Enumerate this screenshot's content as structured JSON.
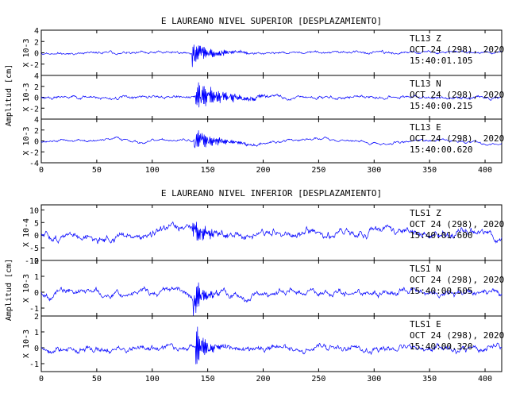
{
  "chart_data": [
    {
      "type": "line",
      "title": "E LAUREANO NIVEL SUPERIOR [DESPLAZAMIENTO]",
      "ylabel": "Amplitud [cm]",
      "xlim": [
        0,
        415
      ],
      "xticks": [
        0,
        50,
        100,
        150,
        200,
        250,
        300,
        350,
        400
      ],
      "line_color": "#0000ff",
      "panels": [
        {
          "scale_label": "X 10-3",
          "ylim": [
            -4,
            4
          ],
          "yticks": [
            -2,
            0,
            2,
            4
          ],
          "station": "TL13   Z",
          "date": "OCT 24 (298), 2020",
          "time": "15:40:01.105",
          "series": {
            "noise": 0.35,
            "trend": 0.05,
            "burst": 2.6,
            "burst_start": 137,
            "burst_len": 50,
            "seed": 11
          }
        },
        {
          "scale_label": "X 10-3",
          "ylim": [
            -4,
            4
          ],
          "yticks": [
            -2,
            0,
            2,
            4
          ],
          "station": "TL13   N",
          "date": "OCT 24 (298), 2020",
          "time": "15:40:00.215",
          "series": {
            "noise": 0.45,
            "trend": 0.05,
            "burst": 3.0,
            "burst_start": 140,
            "burst_len": 70,
            "seed": 23
          }
        },
        {
          "scale_label": "X 10-3",
          "ylim": [
            -4,
            4
          ],
          "yticks": [
            -4,
            -2,
            0,
            2,
            4
          ],
          "station": "TL13   E",
          "date": "OCT 24 (298), 2020",
          "time": "15:40:00.620",
          "series": {
            "noise": 0.25,
            "trend": 0.9,
            "burst": 2.2,
            "burst_start": 138,
            "burst_len": 60,
            "seed": 37
          }
        }
      ]
    },
    {
      "type": "line",
      "title": "E LAUREANO NIVEL INFERIOR [DESPLAZAMIENTO]",
      "ylabel": "Amplitud [cm]",
      "xlim": [
        0,
        415
      ],
      "xticks": [
        0,
        50,
        100,
        150,
        200,
        250,
        300,
        350,
        400
      ],
      "line_color": "#0000ff",
      "panels": [
        {
          "scale_label": "X 10-4",
          "ylim": [
            -10,
            12
          ],
          "yticks": [
            -10,
            -5,
            0,
            5,
            10
          ],
          "station": "TLS1   Z",
          "date": "OCT 24 (298), 2020",
          "time": "15:40:01.600",
          "series": {
            "noise": 2.2,
            "trend": 3.0,
            "burst": 5.0,
            "burst_start": 137,
            "burst_len": 40,
            "seed": 51
          }
        },
        {
          "scale_label": "X 10-3",
          "ylim": [
            -1.5,
            2
          ],
          "yticks": [
            -1,
            0,
            1,
            2
          ],
          "station": "TLS1   N",
          "date": "OCT 24 (298), 2020",
          "time": "15:40:00.505",
          "series": {
            "noise": 0.3,
            "trend": 0.25,
            "burst": 1.4,
            "burst_start": 138,
            "burst_len": 25,
            "seed": 67
          }
        },
        {
          "scale_label": "X 10-3",
          "ylim": [
            -1.5,
            2
          ],
          "yticks": [
            -1,
            0,
            1,
            2
          ],
          "station": "TLS1   E",
          "date": "OCT 24 (298), 2020",
          "time": "15:40:00.320",
          "series": {
            "noise": 0.3,
            "trend": 0.25,
            "burst": 1.4,
            "burst_start": 140,
            "burst_len": 25,
            "seed": 79
          }
        }
      ]
    }
  ]
}
